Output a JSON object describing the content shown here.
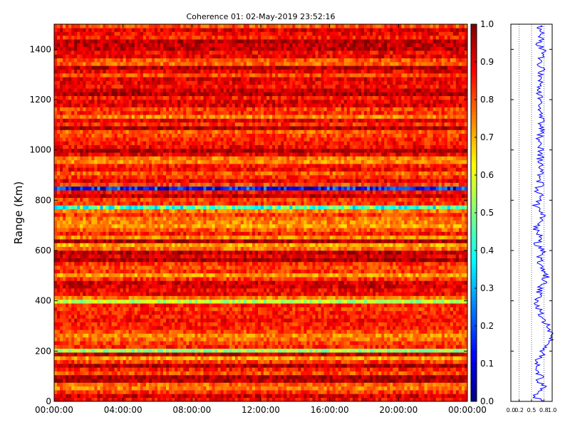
{
  "chart_data": [
    {
      "type": "heatmap",
      "title": "Coherence 01: 02-May-2019 23:52:16",
      "xlabel": "",
      "ylabel": "Range (Km)",
      "x_ticks": [
        "00:00:00",
        "04:00:00",
        "08:00:00",
        "12:00:00",
        "16:00:00",
        "20:00:00",
        "00:00:00"
      ],
      "y_ticks": [
        0,
        200,
        400,
        600,
        800,
        1000,
        1200,
        1400
      ],
      "ylim": [
        0,
        1500
      ],
      "colormap": "jet",
      "colorbar": {
        "ticks": [
          "0.0",
          "0.1",
          "0.2",
          "0.3",
          "0.4",
          "0.5",
          "0.6",
          "0.7",
          "0.8",
          "0.9",
          "1.0"
        ],
        "range": [
          0,
          1
        ]
      },
      "time_columns": 144,
      "range_bins": 100,
      "typical_value": 0.85,
      "low_bands": [
        {
          "range_km": 845,
          "value": 0.15
        },
        {
          "range_km": 770,
          "value": 0.45
        },
        {
          "range_km": 690,
          "value": 0.72
        },
        {
          "range_km": 620,
          "value": 0.72
        },
        {
          "range_km": 495,
          "value": 0.72
        },
        {
          "range_km": 390,
          "value": 0.55
        },
        {
          "range_km": 205,
          "value": 0.52
        },
        {
          "range_km": 165,
          "value": 0.72
        }
      ]
    },
    {
      "type": "line",
      "x_ticks": [
        "0.0",
        "0.2",
        "0.5",
        "0.8",
        "1.0"
      ],
      "xlim": [
        0,
        1
      ],
      "ylim": [
        0,
        1500
      ],
      "color": "#0000ff",
      "profile": [
        [
          0,
          0.72
        ],
        [
          20,
          0.6
        ],
        [
          40,
          0.66
        ],
        [
          60,
          0.78
        ],
        [
          80,
          0.65
        ],
        [
          100,
          0.72
        ],
        [
          120,
          0.62
        ],
        [
          140,
          0.7
        ],
        [
          160,
          0.64
        ],
        [
          180,
          0.78
        ],
        [
          200,
          0.72
        ],
        [
          220,
          0.9
        ],
        [
          240,
          0.96
        ],
        [
          260,
          1.0
        ],
        [
          280,
          0.95
        ],
        [
          300,
          0.88
        ],
        [
          320,
          0.8
        ],
        [
          340,
          0.75
        ],
        [
          360,
          0.72
        ],
        [
          380,
          0.62
        ],
        [
          400,
          0.66
        ],
        [
          420,
          0.7
        ],
        [
          440,
          0.68
        ],
        [
          460,
          0.75
        ],
        [
          480,
          0.82
        ],
        [
          500,
          0.86
        ],
        [
          520,
          0.8
        ],
        [
          540,
          0.72
        ],
        [
          560,
          0.7
        ],
        [
          580,
          0.72
        ],
        [
          600,
          0.76
        ],
        [
          620,
          0.62
        ],
        [
          640,
          0.66
        ],
        [
          660,
          0.7
        ],
        [
          680,
          0.6
        ],
        [
          700,
          0.66
        ],
        [
          720,
          0.72
        ],
        [
          740,
          0.75
        ],
        [
          760,
          0.7
        ],
        [
          780,
          0.62
        ],
        [
          800,
          0.68
        ],
        [
          820,
          0.72
        ],
        [
          840,
          0.62
        ],
        [
          860,
          0.72
        ],
        [
          880,
          0.7
        ],
        [
          900,
          0.72
        ],
        [
          920,
          0.74
        ],
        [
          940,
          0.72
        ],
        [
          960,
          0.7
        ],
        [
          980,
          0.72
        ],
        [
          1000,
          0.76
        ],
        [
          1020,
          0.72
        ],
        [
          1040,
          0.66
        ],
        [
          1060,
          0.72
        ],
        [
          1080,
          0.72
        ],
        [
          1100,
          0.7
        ],
        [
          1120,
          0.74
        ],
        [
          1140,
          0.72
        ],
        [
          1160,
          0.72
        ],
        [
          1180,
          0.75
        ],
        [
          1200,
          0.72
        ],
        [
          1220,
          0.68
        ],
        [
          1240,
          0.62
        ],
        [
          1260,
          0.72
        ],
        [
          1280,
          0.72
        ],
        [
          1300,
          0.72
        ],
        [
          1320,
          0.8
        ],
        [
          1340,
          0.72
        ],
        [
          1360,
          0.72
        ],
        [
          1380,
          0.8
        ],
        [
          1400,
          0.76
        ],
        [
          1420,
          0.66
        ],
        [
          1440,
          0.74
        ],
        [
          1460,
          0.72
        ],
        [
          1480,
          0.7
        ],
        [
          1495,
          0.72
        ]
      ]
    }
  ]
}
